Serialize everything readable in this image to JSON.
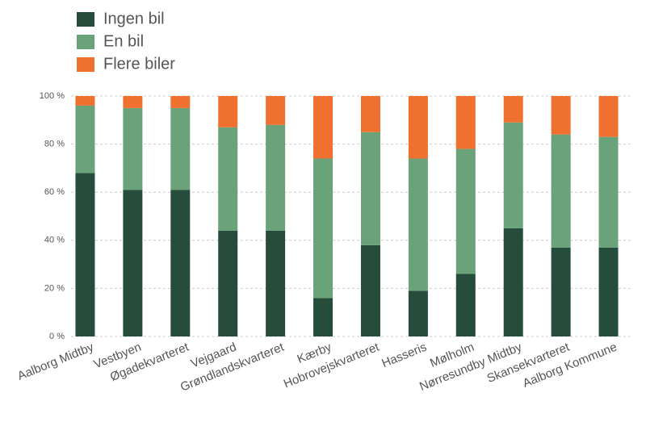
{
  "chart_data": {
    "type": "stacked-bar",
    "categories": [
      "Aalborg Midtby",
      "Vestbyen",
      "Øgadekvarteret",
      "Vejgaard",
      "Grøndlandskvarteret",
      "Kærby",
      "Hobrovejskvarteret",
      "Hasseris",
      "Mølholm",
      "Nørresundby Midtby",
      "Skansekvarteret",
      "Aalborg Kommune"
    ],
    "series": [
      {
        "name": "Ingen bil",
        "color": "#264d3c",
        "values": [
          68,
          61,
          61,
          44,
          44,
          16,
          38,
          19,
          26,
          45,
          37,
          37
        ]
      },
      {
        "name": "En bil",
        "color": "#6aa37a",
        "values": [
          28,
          34,
          34,
          43,
          44,
          58,
          47,
          55,
          52,
          44,
          47,
          46
        ]
      },
      {
        "name": "Flere biler",
        "color": "#f07030",
        "values": [
          4,
          5,
          5,
          13,
          12,
          26,
          15,
          26,
          22,
          11,
          16,
          17
        ]
      }
    ],
    "ylim": [
      0,
      100
    ],
    "yticks": [
      {
        "value": 0,
        "label": "0 %"
      },
      {
        "value": 20,
        "label": "20 %"
      },
      {
        "value": 40,
        "label": "40 %"
      },
      {
        "value": 60,
        "label": "60 %"
      },
      {
        "value": 80,
        "label": "80 %"
      },
      {
        "value": 100,
        "label": "100 %"
      }
    ],
    "grid": true,
    "legend": "top-left"
  }
}
